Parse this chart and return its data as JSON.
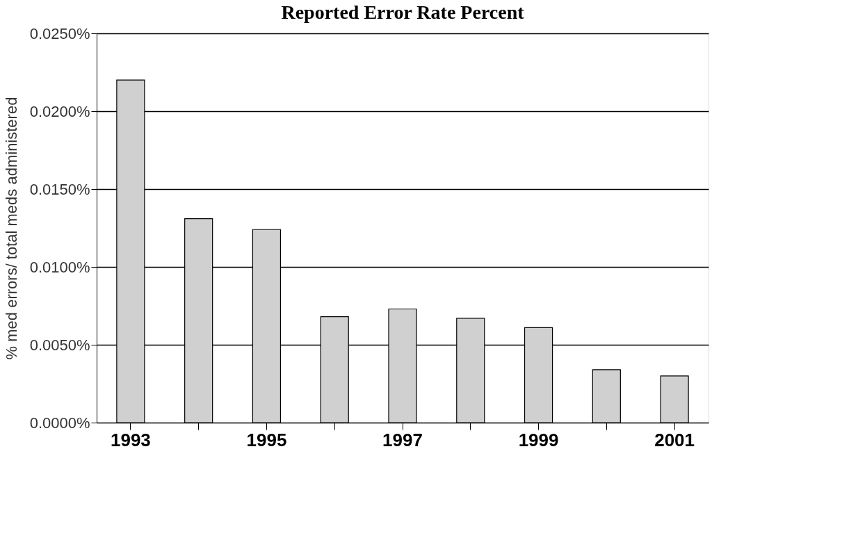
{
  "chart_data": {
    "type": "bar",
    "title": "Reported Error Rate Percent",
    "ylabel": "% med errors/ total meds administered",
    "categories": [
      "1993",
      null,
      "1995",
      null,
      "1997",
      null,
      "1999",
      null,
      "2001"
    ],
    "values": [
      0.022,
      0.0131,
      0.0124,
      0.0068,
      0.0073,
      0.0067,
      0.0061,
      0.0034,
      0.003
    ],
    "color": "#d0d0d0",
    "ylim": [
      0,
      0.025
    ],
    "yticks": [
      {
        "value": 0,
        "label": "0.0000%"
      },
      {
        "value": 0.005,
        "label": "0.0050%"
      },
      {
        "value": 0.01,
        "label": "0.0100%"
      },
      {
        "value": 0.015,
        "label": "0.0150%"
      },
      {
        "value": 0.02,
        "label": "0.0200%"
      },
      {
        "value": 0.025,
        "label": "0.0250%"
      }
    ],
    "grid": "y"
  }
}
